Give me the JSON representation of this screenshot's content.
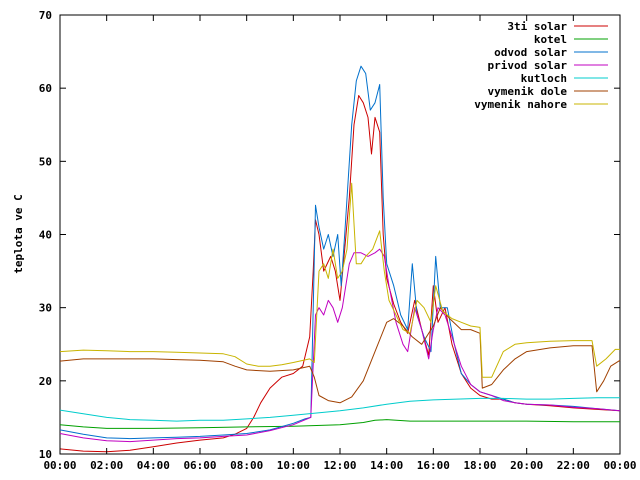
{
  "chart_data": {
    "type": "line",
    "title": "",
    "xlabel": "",
    "ylabel": "teplota ve C",
    "ylim": [
      10,
      70
    ],
    "xlim": [
      "00:00",
      "00:00"
    ],
    "y_ticks": [
      10,
      20,
      30,
      40,
      50,
      60,
      70
    ],
    "x_ticks": [
      "00:00",
      "02:00",
      "04:00",
      "06:00",
      "08:00",
      "10:00",
      "12:00",
      "14:00",
      "16:00",
      "18:00",
      "20:00",
      "22:00",
      "00:00"
    ],
    "grid": false,
    "legend_position": "top-right",
    "series": [
      {
        "name": "3ti solar",
        "color": "#cc0000",
        "points": [
          [
            0,
            10.7
          ],
          [
            1,
            10.4
          ],
          [
            2,
            10.3
          ],
          [
            3,
            10.5
          ],
          [
            4,
            11.0
          ],
          [
            5,
            11.5
          ],
          [
            6,
            11.9
          ],
          [
            7,
            12.2
          ],
          [
            7.5,
            12.7
          ],
          [
            8,
            13.5
          ],
          [
            8.3,
            15.0
          ],
          [
            8.6,
            17.0
          ],
          [
            9,
            19.0
          ],
          [
            9.5,
            20.5
          ],
          [
            10,
            21.0
          ],
          [
            10.4,
            22.0
          ],
          [
            10.7,
            26.0
          ],
          [
            10.85,
            35.0
          ],
          [
            10.95,
            42.0
          ],
          [
            11.1,
            40.0
          ],
          [
            11.3,
            35.0
          ],
          [
            11.6,
            37.0
          ],
          [
            11.8,
            35.0
          ],
          [
            12.0,
            31.0
          ],
          [
            12.2,
            38.0
          ],
          [
            12.4,
            45.0
          ],
          [
            12.6,
            55.0
          ],
          [
            12.8,
            59.0
          ],
          [
            13.0,
            58.0
          ],
          [
            13.2,
            56.0
          ],
          [
            13.35,
            51.0
          ],
          [
            13.5,
            56.0
          ],
          [
            13.7,
            54.0
          ],
          [
            13.85,
            40.0
          ],
          [
            14.0,
            34.0
          ],
          [
            14.3,
            30.5
          ],
          [
            14.6,
            28.0
          ],
          [
            14.9,
            26.5
          ],
          [
            15.2,
            31.0
          ],
          [
            15.5,
            27.0
          ],
          [
            15.8,
            23.5
          ],
          [
            16.0,
            33.0
          ],
          [
            16.2,
            28.0
          ],
          [
            16.5,
            30.0
          ],
          [
            16.8,
            25.0
          ],
          [
            17.2,
            21.0
          ],
          [
            17.6,
            19.0
          ],
          [
            18.0,
            18.0
          ],
          [
            18.5,
            17.5
          ],
          [
            19,
            17.5
          ],
          [
            19.5,
            17.0
          ],
          [
            20,
            16.8
          ],
          [
            21,
            16.6
          ],
          [
            22,
            16.3
          ],
          [
            23,
            16.1
          ],
          [
            24,
            15.9
          ]
        ]
      },
      {
        "name": "kotel",
        "color": "#00a000",
        "points": [
          [
            0,
            14.0
          ],
          [
            1,
            13.7
          ],
          [
            2,
            13.5
          ],
          [
            4,
            13.5
          ],
          [
            6,
            13.6
          ],
          [
            8,
            13.7
          ],
          [
            10,
            13.8
          ],
          [
            11,
            13.9
          ],
          [
            12,
            14.0
          ],
          [
            13,
            14.3
          ],
          [
            13.5,
            14.6
          ],
          [
            14,
            14.7
          ],
          [
            15,
            14.5
          ],
          [
            16,
            14.5
          ],
          [
            18,
            14.5
          ],
          [
            20,
            14.5
          ],
          [
            22,
            14.4
          ],
          [
            24,
            14.4
          ]
        ]
      },
      {
        "name": "odvod solar",
        "color": "#0070cc",
        "points": [
          [
            0,
            13.3
          ],
          [
            1,
            12.7
          ],
          [
            2,
            12.2
          ],
          [
            3,
            12.1
          ],
          [
            4,
            12.2
          ],
          [
            5,
            12.3
          ],
          [
            6,
            12.4
          ],
          [
            7,
            12.6
          ],
          [
            8,
            12.8
          ],
          [
            9,
            13.3
          ],
          [
            10,
            14.2
          ],
          [
            10.5,
            14.8
          ],
          [
            10.75,
            15.0
          ],
          [
            10.95,
            44.0
          ],
          [
            11.1,
            41.0
          ],
          [
            11.3,
            38.0
          ],
          [
            11.5,
            40.0
          ],
          [
            11.7,
            37.0
          ],
          [
            11.9,
            40.0
          ],
          [
            12.05,
            33.0
          ],
          [
            12.2,
            40.0
          ],
          [
            12.5,
            55.0
          ],
          [
            12.7,
            61.0
          ],
          [
            12.9,
            63.0
          ],
          [
            13.1,
            62.0
          ],
          [
            13.3,
            57.0
          ],
          [
            13.5,
            58.0
          ],
          [
            13.7,
            60.5
          ],
          [
            13.85,
            45.0
          ],
          [
            14.0,
            36.0
          ],
          [
            14.3,
            33.0
          ],
          [
            14.6,
            29.0
          ],
          [
            14.9,
            27.0
          ],
          [
            15.1,
            36.0
          ],
          [
            15.3,
            29.0
          ],
          [
            15.6,
            26.0
          ],
          [
            15.9,
            24.0
          ],
          [
            16.1,
            37.0
          ],
          [
            16.3,
            30.0
          ],
          [
            16.6,
            30.0
          ],
          [
            16.9,
            25.0
          ],
          [
            17.2,
            21.0
          ],
          [
            17.6,
            19.5
          ],
          [
            18.0,
            18.5
          ],
          [
            18.5,
            18.0
          ],
          [
            19,
            17.5
          ],
          [
            19.5,
            17.0
          ],
          [
            20,
            16.8
          ],
          [
            21,
            16.7
          ],
          [
            22,
            16.5
          ],
          [
            23,
            16.2
          ],
          [
            24,
            15.9
          ]
        ]
      },
      {
        "name": "privod solar",
        "color": "#c000c0",
        "points": [
          [
            0,
            12.8
          ],
          [
            1,
            12.2
          ],
          [
            2,
            11.8
          ],
          [
            3,
            11.7
          ],
          [
            4,
            11.9
          ],
          [
            5,
            12.1
          ],
          [
            6,
            12.2
          ],
          [
            7,
            12.4
          ],
          [
            8,
            12.6
          ],
          [
            9,
            13.2
          ],
          [
            10,
            14.0
          ],
          [
            10.75,
            15.0
          ],
          [
            10.95,
            29.0
          ],
          [
            11.1,
            30.0
          ],
          [
            11.3,
            29.0
          ],
          [
            11.5,
            31.0
          ],
          [
            11.7,
            30.0
          ],
          [
            11.9,
            28.0
          ],
          [
            12.1,
            30.0
          ],
          [
            12.4,
            36.0
          ],
          [
            12.6,
            37.5
          ],
          [
            12.9,
            37.5
          ],
          [
            13.2,
            37.0
          ],
          [
            13.5,
            37.5
          ],
          [
            13.7,
            38.0
          ],
          [
            13.9,
            37.0
          ],
          [
            14.1,
            33.0
          ],
          [
            14.4,
            28.0
          ],
          [
            14.7,
            25.0
          ],
          [
            14.9,
            24.0
          ],
          [
            15.2,
            30.0
          ],
          [
            15.5,
            27.0
          ],
          [
            15.8,
            23.0
          ],
          [
            16.0,
            27.0
          ],
          [
            16.2,
            30.0
          ],
          [
            16.5,
            29.0
          ],
          [
            16.8,
            26.0
          ],
          [
            17.2,
            22.0
          ],
          [
            17.6,
            19.5
          ],
          [
            18.0,
            18.5
          ],
          [
            18.5,
            18.0
          ],
          [
            19,
            17.3
          ],
          [
            19.5,
            17.0
          ],
          [
            20,
            16.8
          ],
          [
            21,
            16.7
          ],
          [
            22,
            16.4
          ],
          [
            23,
            16.2
          ],
          [
            24,
            15.9
          ]
        ]
      },
      {
        "name": "kutloch",
        "color": "#00cccc",
        "points": [
          [
            0,
            16.0
          ],
          [
            1,
            15.5
          ],
          [
            2,
            15.0
          ],
          [
            3,
            14.7
          ],
          [
            4,
            14.6
          ],
          [
            5,
            14.5
          ],
          [
            6,
            14.6
          ],
          [
            7,
            14.6
          ],
          [
            8,
            14.8
          ],
          [
            9,
            15.0
          ],
          [
            10,
            15.3
          ],
          [
            11,
            15.6
          ],
          [
            12,
            15.9
          ],
          [
            13,
            16.3
          ],
          [
            14,
            16.8
          ],
          [
            15,
            17.2
          ],
          [
            16,
            17.4
          ],
          [
            17,
            17.5
          ],
          [
            18,
            17.6
          ],
          [
            19,
            17.6
          ],
          [
            20,
            17.5
          ],
          [
            21,
            17.5
          ],
          [
            22,
            17.6
          ],
          [
            23,
            17.7
          ],
          [
            24,
            17.7
          ]
        ]
      },
      {
        "name": "vymenik dole",
        "color": "#a04000",
        "points": [
          [
            0,
            22.7
          ],
          [
            1,
            23.0
          ],
          [
            2,
            23.0
          ],
          [
            3,
            23.0
          ],
          [
            4,
            23.0
          ],
          [
            5,
            22.9
          ],
          [
            6,
            22.8
          ],
          [
            7,
            22.6
          ],
          [
            7.5,
            22.0
          ],
          [
            8,
            21.5
          ],
          [
            9,
            21.3
          ],
          [
            10,
            21.5
          ],
          [
            10.7,
            22.0
          ],
          [
            10.9,
            20.5
          ],
          [
            11.1,
            18.0
          ],
          [
            11.5,
            17.3
          ],
          [
            12,
            17.0
          ],
          [
            12.5,
            17.8
          ],
          [
            13,
            20.0
          ],
          [
            13.5,
            24.0
          ],
          [
            14,
            28.0
          ],
          [
            14.3,
            28.5
          ],
          [
            14.7,
            27.5
          ],
          [
            15.1,
            26.0
          ],
          [
            15.5,
            25.0
          ],
          [
            16,
            27.5
          ],
          [
            16.3,
            30.0
          ],
          [
            16.7,
            28.5
          ],
          [
            17.2,
            27.0
          ],
          [
            17.6,
            27.0
          ],
          [
            18.0,
            26.5
          ],
          [
            18.1,
            19.0
          ],
          [
            18.5,
            19.5
          ],
          [
            19,
            21.5
          ],
          [
            19.5,
            23.0
          ],
          [
            20,
            24.0
          ],
          [
            21,
            24.5
          ],
          [
            22,
            24.8
          ],
          [
            22.8,
            24.8
          ],
          [
            23.0,
            18.5
          ],
          [
            23.3,
            20.0
          ],
          [
            23.6,
            22.0
          ],
          [
            24,
            22.8
          ]
        ]
      },
      {
        "name": "vymenik nahore",
        "color": "#c8b400",
        "points": [
          [
            0,
            24.0
          ],
          [
            1,
            24.2
          ],
          [
            2,
            24.1
          ],
          [
            3,
            24.0
          ],
          [
            4,
            24.0
          ],
          [
            5,
            23.9
          ],
          [
            6,
            23.8
          ],
          [
            7,
            23.7
          ],
          [
            7.5,
            23.3
          ],
          [
            8,
            22.3
          ],
          [
            8.5,
            22.0
          ],
          [
            9,
            22.0
          ],
          [
            9.5,
            22.2
          ],
          [
            10,
            22.5
          ],
          [
            10.7,
            23.0
          ],
          [
            10.9,
            22.5
          ],
          [
            11.1,
            35.0
          ],
          [
            11.3,
            36.0
          ],
          [
            11.5,
            34.0
          ],
          [
            11.7,
            38.0
          ],
          [
            11.9,
            34.0
          ],
          [
            12.1,
            35.0
          ],
          [
            12.3,
            38.0
          ],
          [
            12.5,
            47.0
          ],
          [
            12.7,
            36.0
          ],
          [
            12.9,
            36.0
          ],
          [
            13.1,
            37.0
          ],
          [
            13.4,
            38.0
          ],
          [
            13.7,
            40.5
          ],
          [
            13.9,
            35.0
          ],
          [
            14.1,
            31.0
          ],
          [
            14.4,
            29.0
          ],
          [
            14.7,
            27.0
          ],
          [
            15.0,
            26.5
          ],
          [
            15.3,
            31.0
          ],
          [
            15.6,
            30.0
          ],
          [
            15.9,
            28.0
          ],
          [
            16.1,
            33.0
          ],
          [
            16.4,
            29.5
          ],
          [
            16.8,
            28.5
          ],
          [
            17.2,
            28.0
          ],
          [
            17.6,
            27.5
          ],
          [
            18.0,
            27.3
          ],
          [
            18.1,
            20.5
          ],
          [
            18.5,
            20.5
          ],
          [
            19,
            24.0
          ],
          [
            19.5,
            25.0
          ],
          [
            20,
            25.2
          ],
          [
            21,
            25.4
          ],
          [
            22,
            25.5
          ],
          [
            22.8,
            25.5
          ],
          [
            23.0,
            22.0
          ],
          [
            23.4,
            23.0
          ],
          [
            23.8,
            24.3
          ],
          [
            24,
            24.3
          ]
        ]
      }
    ]
  }
}
